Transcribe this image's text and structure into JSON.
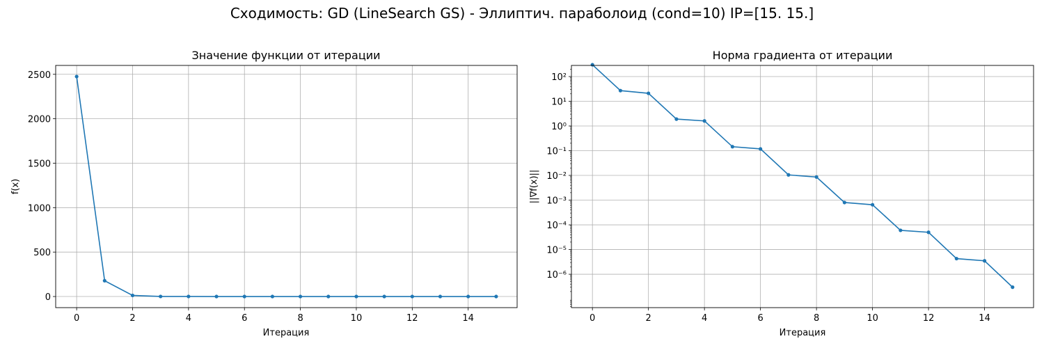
{
  "figure": {
    "suptitle": "Сходимость: GD (LineSearch GS) - Эллиптич. параболоид (cond=10) IP=[15. 15.]"
  },
  "colors": {
    "line": "#1f77b4",
    "grid": "#b0b0b0",
    "axis": "#000000"
  },
  "chart_data": [
    {
      "type": "line",
      "title": "Значение функции от итерации",
      "xlabel": "Итерация",
      "ylabel": "f(x)",
      "yscale": "linear",
      "grid": true,
      "xlim": [
        -0.75,
        15.75
      ],
      "ylim": [
        -125,
        2600
      ],
      "xticks": [
        0,
        2,
        4,
        6,
        8,
        10,
        12,
        14
      ],
      "yticks": [
        0,
        500,
        1000,
        1500,
        2000,
        2500
      ],
      "x": [
        0,
        1,
        2,
        3,
        4,
        5,
        6,
        7,
        8,
        9,
        10,
        11,
        12,
        13,
        14,
        15
      ],
      "series": [
        {
          "values": [
            2475,
            178,
            12.5,
            0.9,
            0.5,
            0.05,
            0.03,
            0.002,
            0.0015,
            0.0001,
            0.0001,
            1e-05,
            1e-05,
            0,
            0,
            0
          ]
        }
      ]
    },
    {
      "type": "line",
      "title": "Норма градиента от итерации",
      "xlabel": "Итерация",
      "ylabel": "||∇f(x)||",
      "yscale": "log",
      "grid": true,
      "xlim": [
        -0.75,
        15.75
      ],
      "ylim_exp": [
        -7.35,
        2.45
      ],
      "xticks": [
        0,
        2,
        4,
        6,
        8,
        10,
        12,
        14
      ],
      "yticks": [
        "10^2",
        "10^1",
        "10^0",
        "10^-1",
        "10^-2",
        "10^-3",
        "10^-4",
        "10^-5",
        "10^-6"
      ],
      "x": [
        0,
        1,
        2,
        3,
        4,
        5,
        6,
        7,
        8,
        9,
        10,
        11,
        12,
        13,
        14,
        15
      ],
      "series": [
        {
          "values": [
            300,
            27,
            21,
            1.9,
            1.6,
            0.145,
            0.118,
            0.0105,
            0.0086,
            0.0008,
            0.00065,
            6e-05,
            5e-05,
            4.3e-06,
            3.5e-06,
            3e-07
          ]
        }
      ]
    }
  ]
}
